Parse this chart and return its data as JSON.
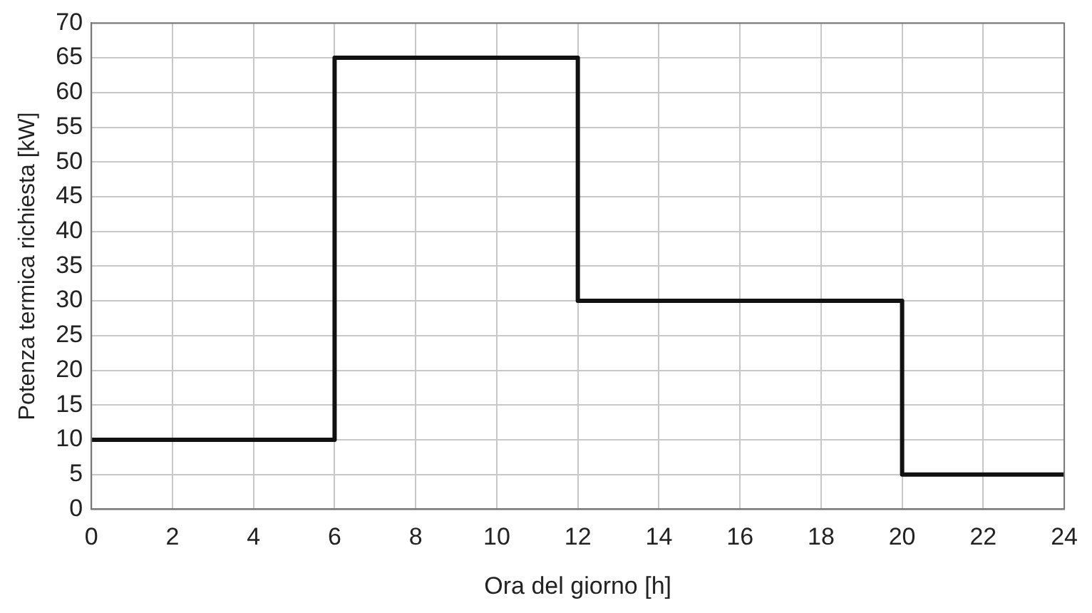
{
  "chart_data": {
    "type": "step",
    "xlabel": "Ora del giorno [h]",
    "ylabel": "Potenza termica richiesta [kW]",
    "x": [
      0,
      6,
      12,
      20,
      24
    ],
    "series": [
      {
        "color": "#111111",
        "values": [
          10,
          65,
          30,
          5,
          5
        ]
      }
    ],
    "xlim": [
      0,
      24
    ],
    "xticks": [
      0,
      2,
      4,
      6,
      8,
      10,
      12,
      14,
      16,
      18,
      20,
      22,
      24
    ],
    "ylim": [
      0,
      70
    ],
    "yticks": [
      0,
      5,
      10,
      15,
      20,
      25,
      30,
      35,
      40,
      45,
      50,
      55,
      60,
      65,
      70
    ],
    "grid": true,
    "legend": false,
    "marker": "none",
    "line_style": "solid"
  }
}
